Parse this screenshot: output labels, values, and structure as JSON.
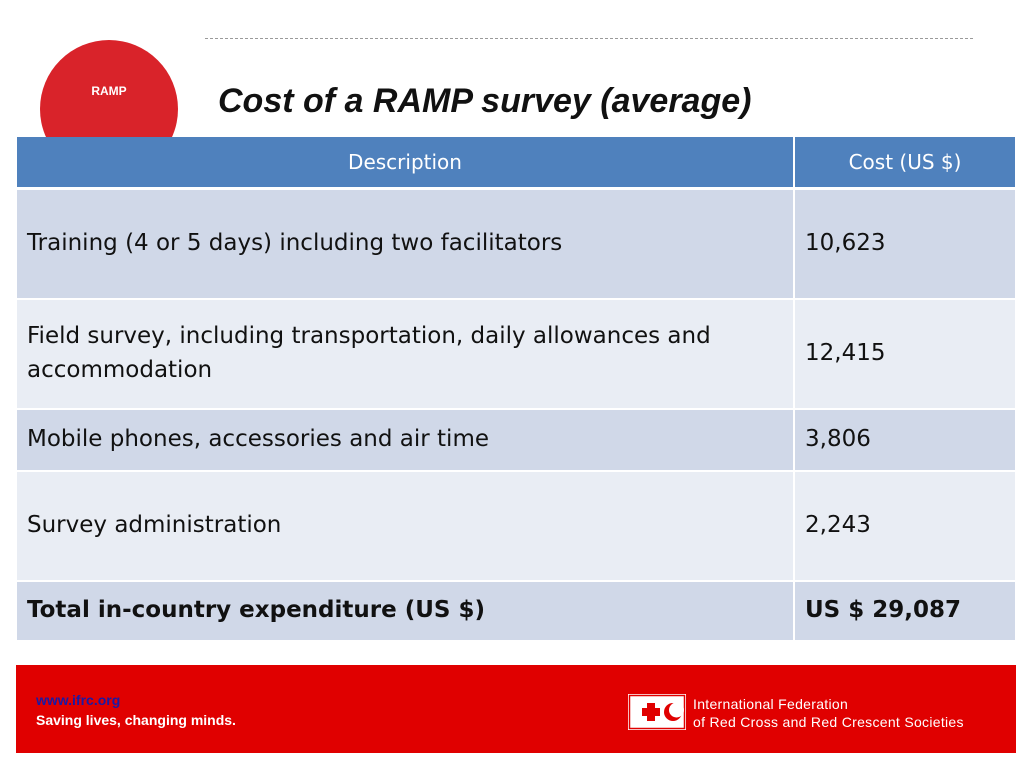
{
  "badge": {
    "label": "RAMP"
  },
  "slide": {
    "title": "Cost of a RAMP survey (average)"
  },
  "table": {
    "headers": [
      "Description",
      "Cost  (US $)"
    ],
    "rows": [
      {
        "description": "Training (4 or 5 days) including two facilitators",
        "cost": "10,623"
      },
      {
        "description": "Field survey, including transportation, daily allowances and accommodation",
        "cost": "12,415"
      },
      {
        "description": "Mobile phones, accessories and air time",
        "cost": "3,806"
      },
      {
        "description": "Survey administration",
        "cost": "2,243"
      }
    ],
    "total": {
      "description": "Total in-country expenditure (US $)",
      "cost": "US $ 29,087"
    }
  },
  "footer": {
    "url": "www.ifrc.org",
    "slogan": "Saving lives, changing minds.",
    "org_line1": "International Federation",
    "org_line2": "of Red Cross and Red Crescent Societies",
    "logo_icon": "red-cross-crescent-logo-icon"
  },
  "colors": {
    "badge_red": "#d9232a",
    "header_blue": "#4f81bd",
    "row_dark": "#d0d8e8",
    "row_light": "#e9edf4",
    "footer_red": "#e00000",
    "link_blue": "#1a1aa6"
  }
}
